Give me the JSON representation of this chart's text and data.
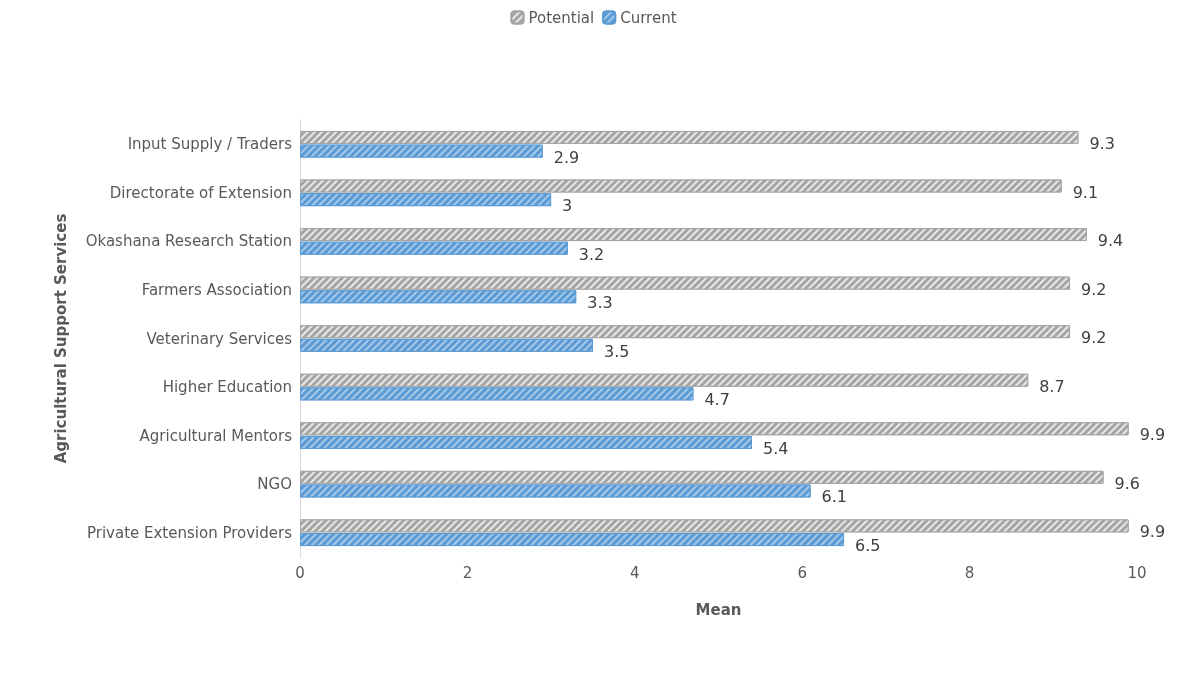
{
  "chart_data": {
    "type": "bar",
    "orientation": "horizontal",
    "categories": [
      "Input Supply / Traders",
      "Directorate of Extension",
      "Okashana Research Station",
      "Farmers Association",
      "Veterinary Services",
      "Higher Education",
      "Agricultural Mentors",
      "NGO",
      "Private Extension Providers"
    ],
    "series": [
      {
        "name": "Potential",
        "color": "#a5a5a5",
        "values": [
          9.3,
          9.1,
          9.4,
          9.2,
          9.2,
          8.7,
          9.9,
          9.6,
          9.9
        ]
      },
      {
        "name": "Current",
        "color": "#5b9bd5",
        "values": [
          2.9,
          3,
          3.2,
          3.3,
          3.5,
          4.7,
          5.4,
          6.1,
          6.5
        ]
      }
    ],
    "xlabel": "Mean",
    "ylabel": "Agricultural Support Services",
    "xlim": [
      0,
      10
    ],
    "xticks": [
      0,
      2,
      4,
      6,
      8,
      10
    ],
    "data_labels": true,
    "legend": "top",
    "grid": false
  }
}
